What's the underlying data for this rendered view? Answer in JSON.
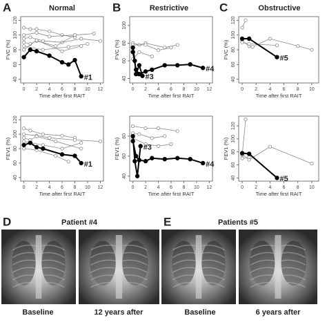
{
  "figure": {
    "panels": [
      {
        "letter": "A",
        "title": "Normal"
      },
      {
        "letter": "B",
        "title": "Restrictive"
      },
      {
        "letter": "C",
        "title": "Obstructive"
      }
    ],
    "images": [
      {
        "letter": "D",
        "title": "Patient #4",
        "captions": [
          "Baseline",
          "12 years after"
        ]
      },
      {
        "letter": "E",
        "title": "Patients #5",
        "captions": [
          "Baseline",
          "6 years after"
        ]
      }
    ]
  },
  "chart_data": [
    {
      "type": "line",
      "xlabel": "Time after first RAIT",
      "ylabel": "FVC (%)",
      "xlim": [
        -0.5,
        12.5
      ],
      "xticks": [
        0,
        2,
        4,
        6,
        8,
        10,
        12
      ],
      "ylim": [
        35,
        125
      ],
      "yticks": [
        40,
        60,
        80,
        100,
        120
      ],
      "series": [
        {
          "color": "#888888",
          "x": [
            0,
            1,
            2,
            4,
            6,
            8
          ],
          "values": [
            110,
            108,
            108,
            105,
            100,
            97
          ]
        },
        {
          "color": "#888888",
          "x": [
            0,
            2,
            4,
            8,
            11
          ],
          "values": [
            100,
            103,
            98,
            100,
            102
          ]
        },
        {
          "color": "#888888",
          "x": [
            0,
            1,
            3,
            6,
            9,
            12
          ],
          "values": [
            95,
            97,
            92,
            90,
            95,
            92
          ]
        },
        {
          "color": "#888888",
          "x": [
            0,
            1,
            2,
            5,
            8
          ],
          "values": [
            90,
            88,
            92,
            85,
            100
          ]
        },
        {
          "color": "#888888",
          "x": [
            0,
            3,
            7,
            10
          ],
          "values": [
            85,
            80,
            84,
            88
          ]
        },
        {
          "color": "#888888",
          "x": [
            0,
            2,
            6,
            9
          ],
          "values": [
            80,
            93,
            78,
            85
          ]
        },
        {
          "color": "#000000",
          "label": "#1",
          "x": [
            0,
            1,
            2,
            4,
            6,
            7,
            8,
            9
          ],
          "values": [
            70,
            80,
            78,
            72,
            63,
            60,
            66,
            44
          ]
        }
      ]
    },
    {
      "type": "line",
      "xlabel": "Time after first RAIT",
      "ylabel": "FVC (%)",
      "xlim": [
        -0.5,
        12.5
      ],
      "xticks": [
        0,
        2,
        4,
        6,
        8,
        10,
        12
      ],
      "ylim": [
        35,
        110
      ],
      "yticks": [
        40,
        60,
        80,
        100
      ],
      "series": [
        {
          "color": "#888888",
          "x": [
            0,
            1,
            2,
            5,
            7
          ],
          "values": [
            80,
            78,
            80,
            75,
            78
          ]
        },
        {
          "color": "#888888",
          "x": [
            0,
            2,
            4,
            6
          ],
          "values": [
            78,
            78,
            72,
            75
          ]
        },
        {
          "color": "#888888",
          "x": [
            0,
            1,
            3
          ],
          "values": [
            62,
            70,
            65
          ]
        },
        {
          "color": "#000000",
          "label": "#3",
          "x": [
            0,
            0.3,
            0.5,
            1,
            1.5
          ],
          "values": [
            75,
            60,
            45,
            55,
            43
          ]
        },
        {
          "color": "#000000",
          "label": "#4",
          "x": [
            0,
            0.5,
            1,
            2,
            3,
            5,
            7,
            9,
            11
          ],
          "values": [
            70,
            50,
            45,
            48,
            50,
            55,
            55,
            56,
            52
          ]
        }
      ]
    },
    {
      "type": "line",
      "xlabel": "Time after first RAIT",
      "ylabel": "FVC (%)",
      "xlim": [
        -0.5,
        11
      ],
      "xticks": [
        0,
        2,
        4,
        6,
        8,
        10
      ],
      "ylim": [
        35,
        125
      ],
      "yticks": [
        40,
        60,
        80,
        100,
        120
      ],
      "series": [
        {
          "color": "#888888",
          "x": [
            0,
            0.5
          ],
          "values": [
            110,
            120
          ]
        },
        {
          "color": "#888888",
          "x": [
            0,
            1,
            1.5,
            4,
            8,
            10
          ],
          "values": [
            92,
            85,
            84,
            95,
            85,
            80
          ]
        },
        {
          "color": "#888888",
          "x": [
            0,
            1,
            5
          ],
          "values": [
            90,
            88,
            86
          ]
        },
        {
          "color": "#000000",
          "label": "#5",
          "x": [
            0,
            1,
            5
          ],
          "values": [
            95,
            95,
            70
          ]
        }
      ]
    },
    {
      "type": "line",
      "xlabel": "Time after first RAIT",
      "ylabel": "FEV1 (%)",
      "xlim": [
        -0.5,
        12.5
      ],
      "xticks": [
        0,
        2,
        4,
        6,
        8,
        10,
        12
      ],
      "ylim": [
        35,
        125
      ],
      "yticks": [
        40,
        60,
        80,
        100,
        120
      ],
      "series": [
        {
          "color": "#888888",
          "x": [
            0,
            1,
            3,
            6,
            8
          ],
          "values": [
            108,
            105,
            100,
            98,
            95
          ]
        },
        {
          "color": "#888888",
          "x": [
            0,
            2,
            4,
            8,
            12
          ],
          "values": [
            100,
            98,
            95,
            92,
            90
          ]
        },
        {
          "color": "#888888",
          "x": [
            0,
            1,
            2,
            5,
            9
          ],
          "values": [
            95,
            92,
            97,
            90,
            80
          ]
        },
        {
          "color": "#888888",
          "x": [
            0,
            3,
            6,
            9
          ],
          "values": [
            90,
            85,
            80,
            88
          ]
        },
        {
          "color": "#888888",
          "x": [
            0,
            2,
            5,
            7
          ],
          "values": [
            80,
            78,
            70,
            62
          ]
        },
        {
          "color": "#000000",
          "label": "#1",
          "x": [
            0,
            1,
            2,
            3,
            6,
            8,
            9
          ],
          "values": [
            85,
            88,
            82,
            80,
            72,
            70,
            60
          ]
        }
      ]
    },
    {
      "type": "line",
      "xlabel": "Time after first RAIT",
      "ylabel": "FEV1 (%)",
      "xlim": [
        -0.5,
        12.5
      ],
      "xticks": [
        0,
        2,
        4,
        6,
        8,
        10,
        12
      ],
      "ylim": [
        35,
        100
      ],
      "yticks": [
        40,
        60,
        80
      ],
      "series": [
        {
          "color": "#888888",
          "x": [
            0,
            2,
            4,
            7
          ],
          "values": [
            90,
            88,
            88,
            85
          ]
        },
        {
          "color": "#888888",
          "x": [
            0,
            1,
            3,
            5
          ],
          "values": [
            83,
            82,
            78,
            80
          ]
        },
        {
          "color": "#888888",
          "x": [
            0,
            2,
            4,
            6
          ],
          "values": [
            78,
            72,
            70,
            72
          ]
        },
        {
          "color": "#000000",
          "label": "#3",
          "x": [
            0,
            0.3,
            0.7,
            1.2
          ],
          "values": [
            80,
            55,
            40,
            70
          ]
        },
        {
          "color": "#000000",
          "label": "#4",
          "x": [
            0,
            0.5,
            1,
            2,
            3,
            5,
            7,
            9,
            11
          ],
          "values": [
            75,
            60,
            56,
            55,
            58,
            57,
            58,
            57,
            53
          ]
        }
      ]
    },
    {
      "type": "line",
      "xlabel": "Time after first RAIT",
      "ylabel": "FEV1 (%)",
      "xlim": [
        -0.5,
        11
      ],
      "xticks": [
        0,
        2,
        4,
        6,
        8,
        10
      ],
      "ylim": [
        35,
        135
      ],
      "yticks": [
        40,
        60,
        80,
        100,
        120
      ],
      "series": [
        {
          "color": "#888888",
          "x": [
            0,
            0.5
          ],
          "values": [
            75,
            130
          ]
        },
        {
          "color": "#888888",
          "x": [
            0,
            1,
            4,
            10
          ],
          "values": [
            76,
            68,
            88,
            62
          ]
        },
        {
          "color": "#888888",
          "x": [
            0,
            1
          ],
          "values": [
            70,
            72
          ]
        },
        {
          "color": "#000000",
          "label": "#5",
          "x": [
            0,
            1,
            5
          ],
          "values": [
            78,
            77,
            40
          ]
        }
      ]
    }
  ]
}
